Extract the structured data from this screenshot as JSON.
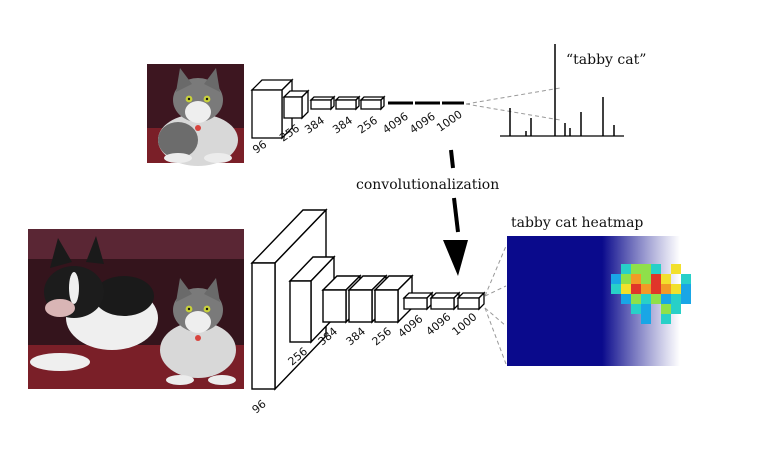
{
  "top_pipeline": {
    "class_label": "“tabby cat”",
    "layer_sizes": [
      "96",
      "256",
      "384",
      "384",
      "256",
      "4096",
      "4096",
      "1000"
    ]
  },
  "transform": {
    "label": "convolutionalization"
  },
  "bottom_pipeline": {
    "heatmap_title": "tabby cat heatmap",
    "layer_sizes": [
      "96",
      "256",
      "384",
      "384",
      "256",
      "4096",
      "4096",
      "1000"
    ]
  },
  "colors": {
    "heatmap_background": "#0a0a8c",
    "heatmap_hot": "#e0362a",
    "photo_wall": "#4a1c2c",
    "photo_couch": "#6e1f2a"
  }
}
